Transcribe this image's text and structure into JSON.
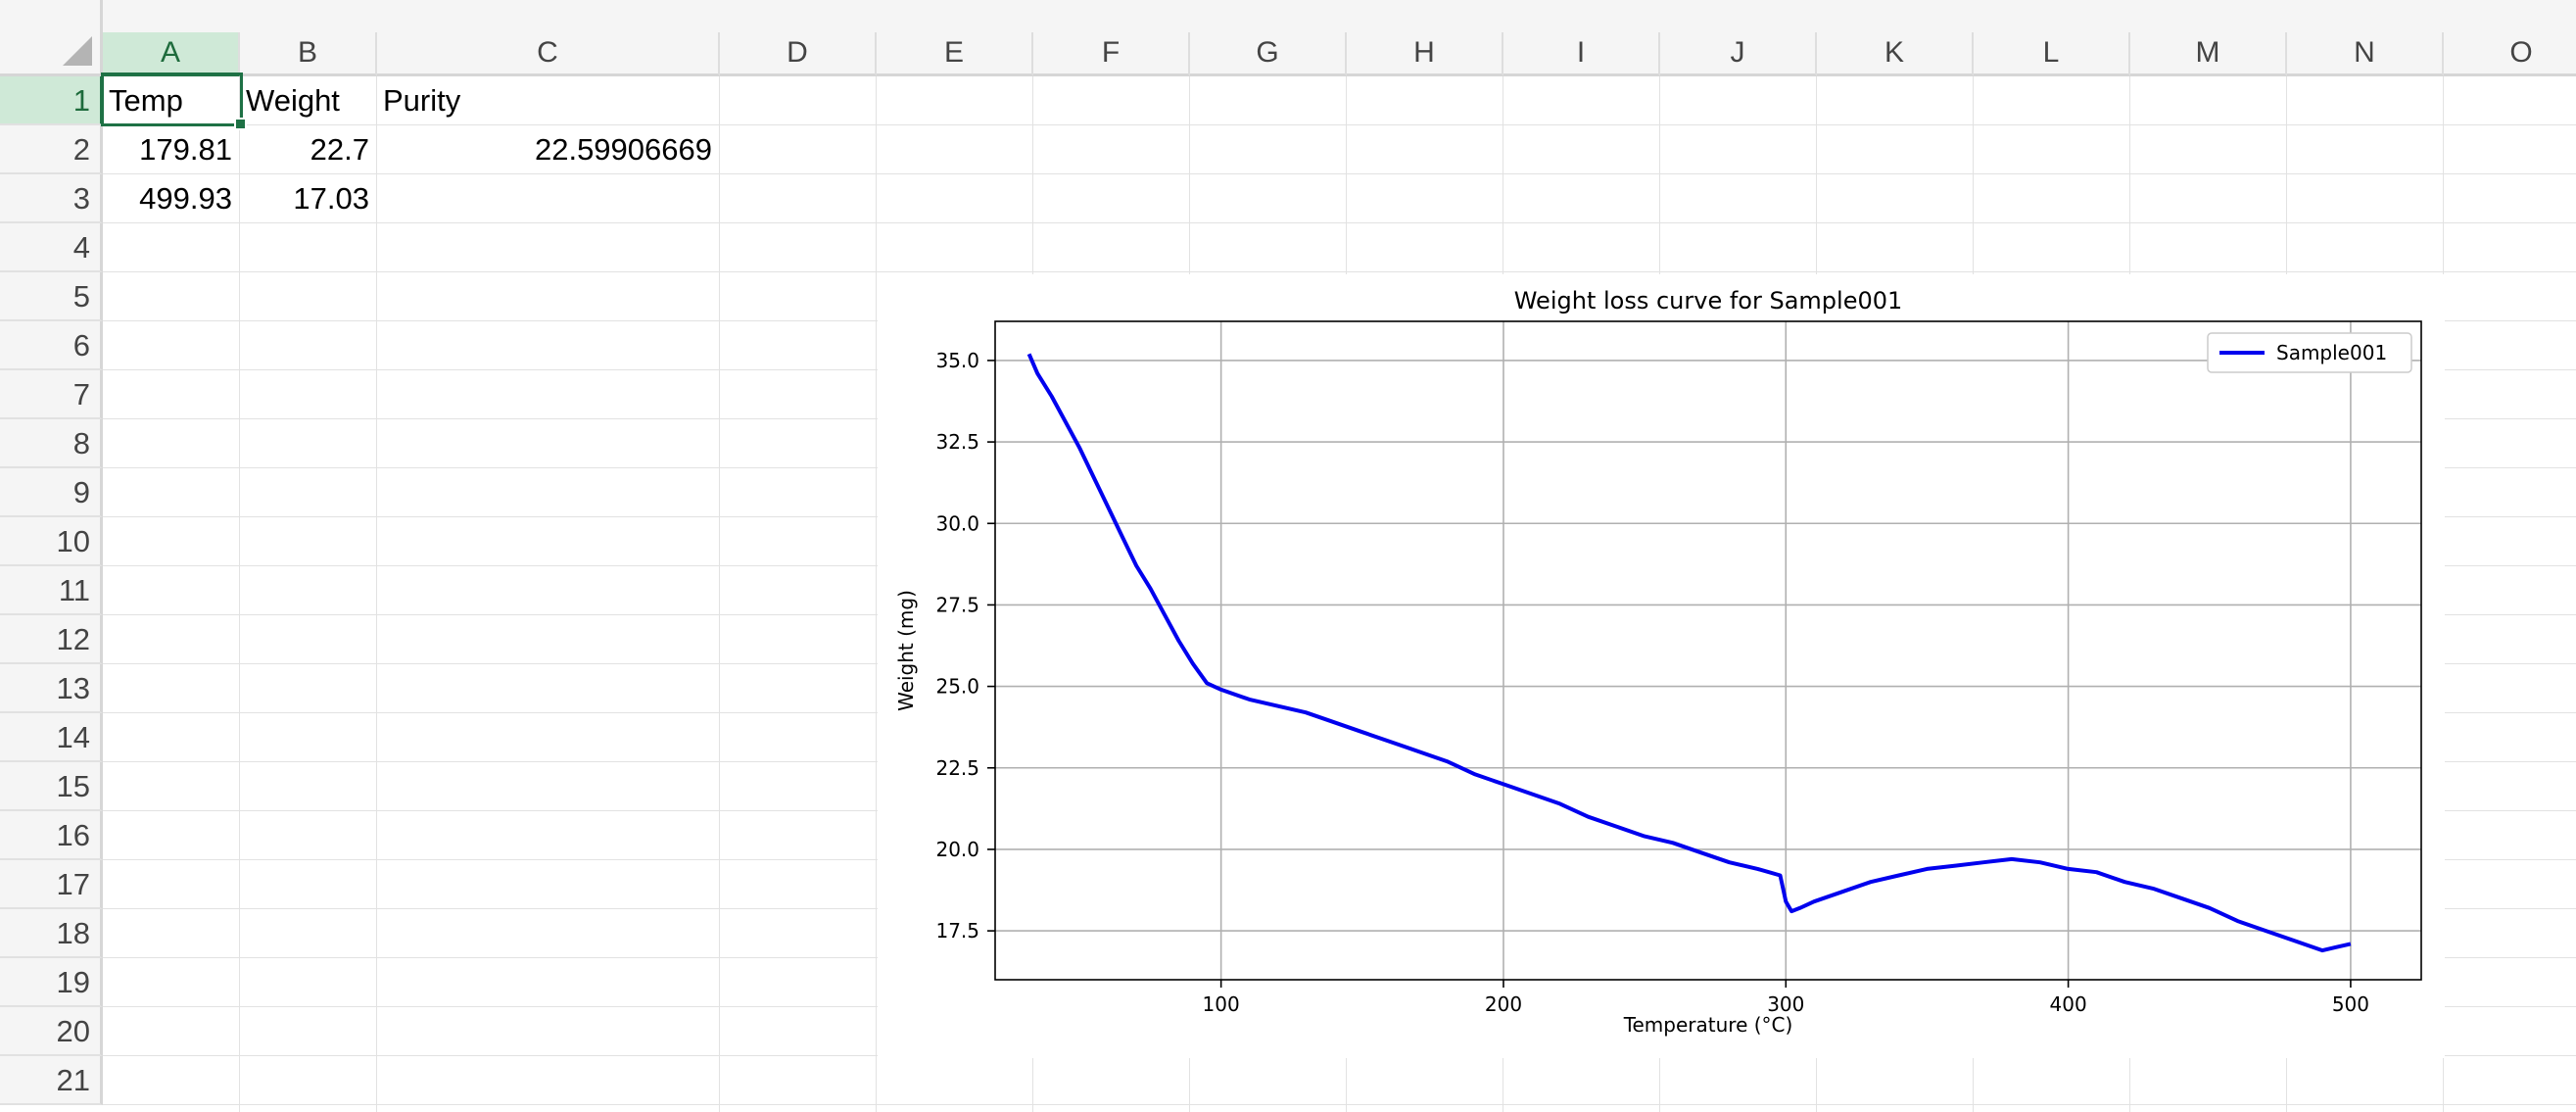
{
  "spreadsheet": {
    "columns": [
      "A",
      "B",
      "C",
      "D",
      "E",
      "F",
      "G",
      "H",
      "I",
      "J",
      "K",
      "L",
      "M",
      "N",
      "O"
    ],
    "rows": [
      "1",
      "2",
      "3",
      "4",
      "5",
      "6",
      "7",
      "8",
      "9",
      "10",
      "11",
      "12",
      "13",
      "14",
      "15",
      "16",
      "17",
      "18",
      "19",
      "20",
      "21"
    ],
    "active_cell": "A1",
    "cells": {
      "A1": "Temp",
      "B1": "Weight",
      "C1": "Purity",
      "A2": "179.81",
      "B2": "22.7",
      "C2": "22.59906669",
      "A3": "499.93",
      "B3": "17.03"
    },
    "colors": {
      "header_bg": "#f5f5f5",
      "active_header_bg": "#cfe9d7",
      "selection_border": "#1e7145",
      "gridline": "#e2e2e2"
    }
  },
  "chart_data": {
    "type": "line",
    "title": "Weight loss curve for Sample001",
    "xlabel": "Temperature (°C)",
    "ylabel": "Weight (mg)",
    "xlim": [
      20,
      525
    ],
    "ylim": [
      16,
      36.2
    ],
    "xticks": [
      100,
      200,
      300,
      400,
      500
    ],
    "yticks": [
      17.5,
      20.0,
      22.5,
      25.0,
      27.5,
      30.0,
      32.5,
      35.0
    ],
    "grid": true,
    "legend": "top-right",
    "line_color": "#0000ee",
    "series": [
      {
        "name": "Sample001",
        "x": [
          32,
          35,
          40,
          45,
          50,
          55,
          60,
          65,
          70,
          75,
          80,
          85,
          90,
          95,
          100,
          110,
          120,
          130,
          140,
          150,
          160,
          170,
          180,
          190,
          200,
          210,
          220,
          230,
          240,
          250,
          260,
          270,
          280,
          290,
          298,
          300,
          302,
          305,
          310,
          320,
          330,
          340,
          350,
          360,
          370,
          380,
          390,
          400,
          410,
          420,
          430,
          440,
          450,
          460,
          470,
          480,
          490,
          495,
          500
        ],
        "y": [
          35.2,
          34.6,
          33.9,
          33.1,
          32.3,
          31.4,
          30.5,
          29.6,
          28.7,
          28.0,
          27.2,
          26.4,
          25.7,
          25.1,
          24.9,
          24.6,
          24.4,
          24.2,
          23.9,
          23.6,
          23.3,
          23.0,
          22.7,
          22.3,
          22.0,
          21.7,
          21.4,
          21.0,
          20.7,
          20.4,
          20.2,
          19.9,
          19.6,
          19.4,
          19.2,
          18.4,
          18.1,
          18.2,
          18.4,
          18.7,
          19.0,
          19.2,
          19.4,
          19.5,
          19.6,
          19.7,
          19.6,
          19.4,
          19.3,
          19.0,
          18.8,
          18.5,
          18.2,
          17.8,
          17.5,
          17.2,
          16.9,
          17.0,
          17.1
        ]
      }
    ]
  }
}
